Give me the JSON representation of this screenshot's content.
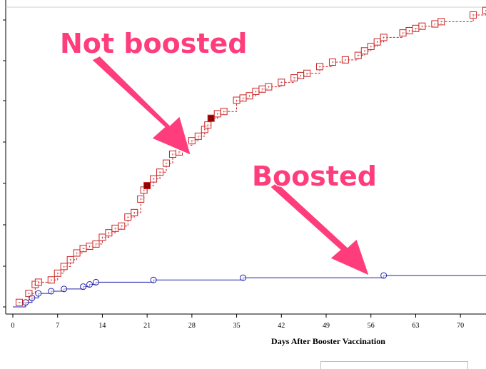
{
  "chart_data": {
    "type": "line",
    "xlabel": "Days After Booster Vaccination",
    "xticks": [
      0,
      7,
      14,
      21,
      28,
      35,
      42,
      49,
      56,
      63,
      70
    ],
    "xlim": [
      0,
      74
    ],
    "ylim": [
      0,
      1
    ],
    "series": [
      {
        "label": "Not boosted",
        "color": "#cc2222",
        "marker": "square",
        "line": "dashed",
        "x": [
          1,
          2.5,
          3.5,
          4,
          6,
          7,
          8,
          9,
          10,
          11,
          12,
          13,
          14,
          15,
          16,
          17,
          18,
          19,
          20,
          20.5,
          21,
          22,
          23,
          24,
          25,
          26,
          27,
          28,
          29,
          30,
          30.5,
          31,
          32,
          33,
          35,
          36,
          37,
          38,
          39,
          40,
          42,
          44,
          45,
          46,
          48,
          50,
          52,
          54,
          55,
          56,
          57,
          58,
          61,
          62,
          63,
          64,
          66,
          67,
          72,
          74
        ],
        "y": [
          0.01,
          0.03,
          0.05,
          0.055,
          0.06,
          0.075,
          0.09,
          0.105,
          0.12,
          0.13,
          0.135,
          0.14,
          0.155,
          0.165,
          0.175,
          0.18,
          0.2,
          0.21,
          0.24,
          0.26,
          0.27,
          0.285,
          0.3,
          0.32,
          0.34,
          0.345,
          0.36,
          0.37,
          0.38,
          0.395,
          0.405,
          0.42,
          0.43,
          0.435,
          0.46,
          0.465,
          0.47,
          0.48,
          0.485,
          0.49,
          0.5,
          0.51,
          0.515,
          0.52,
          0.535,
          0.545,
          0.55,
          0.56,
          0.57,
          0.58,
          0.59,
          0.6,
          0.61,
          0.615,
          0.62,
          0.625,
          0.63,
          0.635,
          0.65,
          0.66
        ],
        "censored_x": [
          21,
          31
        ]
      },
      {
        "label": "Boosted",
        "color": "#2222aa",
        "marker": "circle",
        "line": "solid",
        "x": [
          0,
          2,
          3,
          4,
          6,
          8,
          11,
          12,
          13,
          22,
          36,
          58,
          74
        ],
        "y": [
          0.0,
          0.01,
          0.02,
          0.03,
          0.035,
          0.04,
          0.045,
          0.05,
          0.055,
          0.06,
          0.065,
          0.07,
          0.07
        ],
        "marker_x": [
          2,
          3,
          4,
          6,
          8,
          11,
          12,
          13,
          22,
          36,
          58
        ]
      }
    ],
    "annotations": [
      {
        "text": "Not boosted",
        "points_to_series": "Not boosted"
      },
      {
        "text": "Boosted",
        "points_to_series": "Boosted"
      }
    ]
  }
}
